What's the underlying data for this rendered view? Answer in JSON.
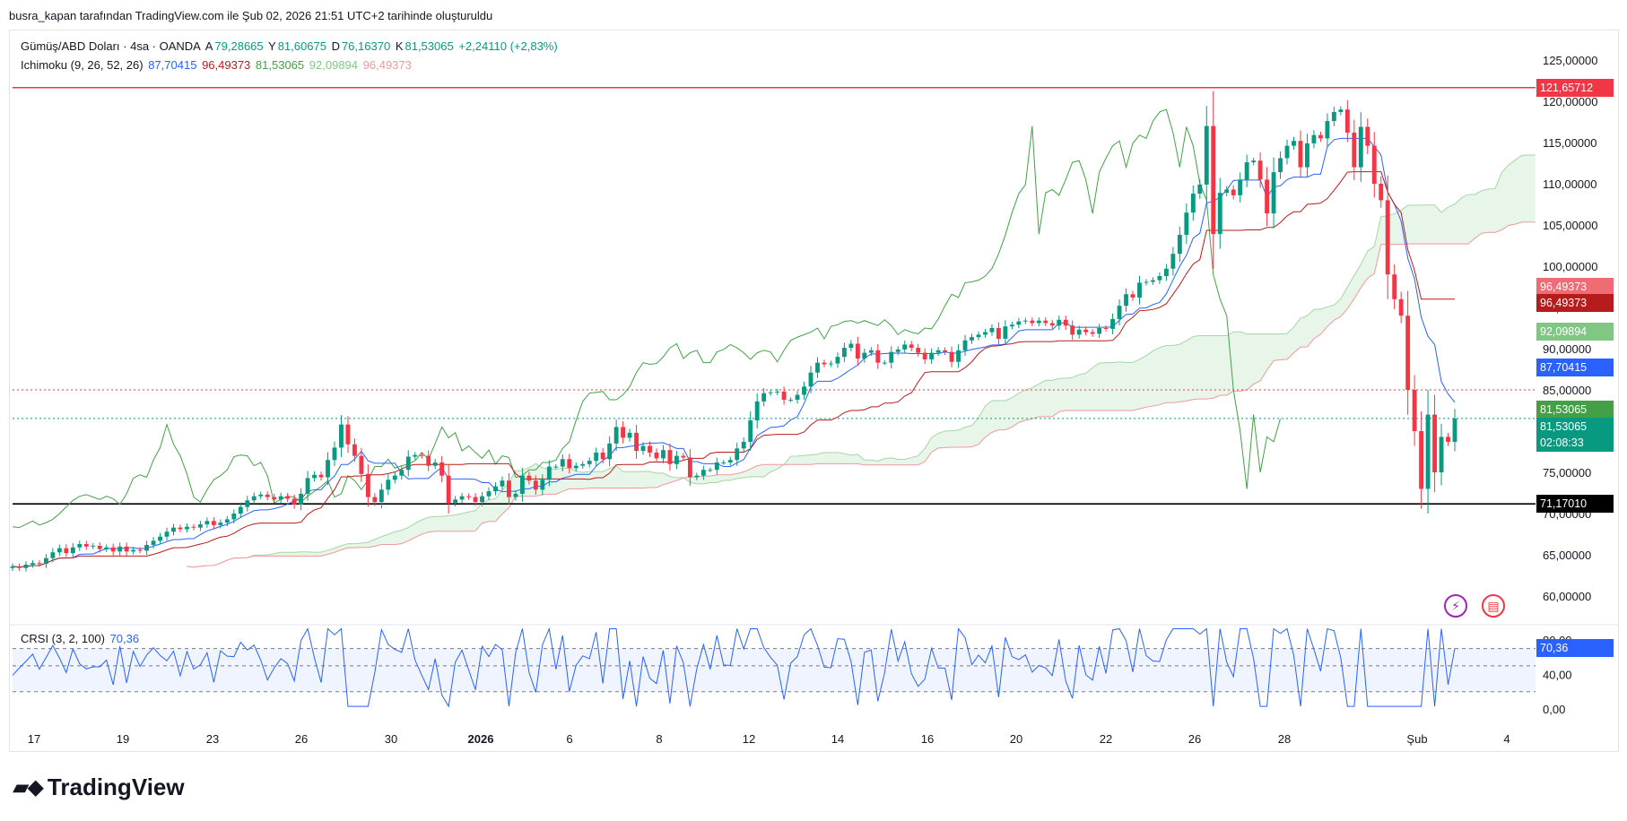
{
  "header_text": "busra_kapan tarafından TradingView.com ile Şub 02, 2026 21:51 UTC+2 tarihinde oluşturuldu",
  "brand": "TradingView",
  "legend": {
    "symbol": "Gümüş/ABD Doları · 4sa · OANDA",
    "o_label": "A",
    "o_val": "79,28665",
    "h_label": "Y",
    "h_val": "81,60675",
    "l_label": "D",
    "l_val": "76,16370",
    "c_label": "K",
    "c_val": "81,53065",
    "change": "+2,24110 (+2,83%)",
    "ichimoku_label": "Ichimoku (9, 26, 52, 26)",
    "ich_vals": [
      "87,70415",
      "96,49373",
      "81,53065",
      "92,09894",
      "96,49373"
    ],
    "crsi_label": "CRSI (3, 2, 100)",
    "crsi_val": "70,36"
  },
  "colors": {
    "up": "#089981",
    "down": "#f23645",
    "tenkan": "#2962ff",
    "kijun": "#b71c1c",
    "chikou": "#43a047",
    "spanA": "#a5d6a7",
    "spanB": "#ef9a9a",
    "crsi": "#2962ff"
  },
  "price_labels": [
    {
      "text": "121,65712",
      "bg": "#f23645",
      "price": 121.65712
    },
    {
      "text": "96,49373",
      "bg": "#ef6c75",
      "price": 96.49373,
      "dy": -9
    },
    {
      "text": "96,49373",
      "bg": "#b71c1c",
      "price": 96.49373,
      "dy": 9
    },
    {
      "text": "92,09894",
      "bg": "#81c784",
      "price": 92.09894
    },
    {
      "text": "87,70415",
      "bg": "#2962ff",
      "price": 87.70415
    },
    {
      "text": "81,53065",
      "bg": "#43a047",
      "price": 81.53065,
      "dy": -10
    },
    {
      "text": "81,53065",
      "bg": "#089981",
      "price": 81.53065,
      "dy": 9
    },
    {
      "text": "02:08:33",
      "bg": "#089981",
      "price": 81.53065,
      "dy": 27
    },
    {
      "text": "71,17010",
      "bg": "#000000",
      "price": 71.1701
    },
    {
      "text": "70,36",
      "bg": "#2962ff",
      "crsi": 70.36
    }
  ],
  "chart_data": {
    "type": "candlestick",
    "price_axis": {
      "ticks": [
        60,
        65,
        70,
        75,
        80,
        85,
        90,
        95,
        100,
        105,
        110,
        115,
        120,
        125
      ],
      "tick_labels": [
        "60,00000",
        "65,00000",
        "70,00000",
        "75,00000",
        "80,00000",
        "85,00000",
        "90,00000",
        "95,00000",
        "100,00000",
        "105,00000",
        "110,00000",
        "115,00000",
        "120,00000",
        "125,00000"
      ]
    },
    "crsi_axis": {
      "ticks": [
        0,
        40,
        80
      ],
      "tick_labels": [
        "0,00",
        "40,00",
        "80,00"
      ],
      "bands": [
        20,
        50,
        70
      ]
    },
    "time_axis": [
      "17",
      "19",
      "23",
      "26",
      "30",
      "2026",
      "6",
      "8",
      "12",
      "14",
      "16",
      "20",
      "22",
      "26",
      "28",
      "Şub",
      "4"
    ],
    "horizontal_lines": [
      {
        "price": 121.65712,
        "color": "#f23645",
        "style": "solid"
      },
      {
        "price": 71.1701,
        "color": "#000000",
        "style": "solid"
      },
      {
        "price": 85.0,
        "color": "#f23645",
        "style": "dotted"
      },
      {
        "price": 81.53065,
        "color": "#089981",
        "style": "dotted"
      }
    ],
    "candles_close": [
      63.6,
      63.4,
      63.8,
      64.0,
      63.9,
      64.6,
      65.3,
      65.8,
      65.2,
      65.9,
      66.3,
      66.0,
      66.1,
      65.7,
      65.9,
      65.4,
      66.0,
      65.4,
      65.6,
      65.5,
      66.2,
      66.7,
      67.2,
      67.8,
      68.3,
      68.1,
      68.4,
      68.3,
      68.7,
      69.1,
      68.6,
      68.9,
      69.3,
      70.0,
      70.8,
      71.6,
      72.1,
      72.3,
      72.0,
      71.7,
      72.1,
      71.8,
      71.1,
      72.4,
      74.3,
      74.7,
      74.4,
      76.5,
      78.0,
      80.8,
      78.4,
      77.0,
      74.8,
      72.0,
      71.4,
      72.9,
      74.1,
      74.6,
      75.3,
      76.9,
      77.1,
      77.0,
      75.8,
      76.2,
      74.6,
      71.3,
      71.7,
      72.1,
      72.0,
      71.4,
      72.1,
      72.7,
      73.3,
      74.0,
      72.0,
      72.4,
      74.6,
      74.0,
      72.9,
      74.1,
      75.7,
      75.7,
      76.6,
      75.5,
      75.8,
      76.0,
      76.4,
      77.4,
      76.6,
      78.5,
      80.5,
      79.2,
      79.8,
      77.6,
      78.2,
      77.4,
      76.7,
      77.7,
      76.0,
      77.0,
      76.8,
      74.4,
      74.6,
      75.3,
      75.3,
      76.2,
      76.2,
      76.5,
      77.9,
      78.7,
      81.3,
      83.6,
      84.6,
      84.7,
      84.8,
      83.8,
      83.8,
      84.4,
      85.4,
      87.1,
      88.3,
      88.1,
      88.2,
      89.0,
      90.1,
      90.6,
      88.8,
      89.5,
      89.8,
      88.3,
      88.3,
      89.6,
      89.9,
      90.5,
      90.1,
      89.5,
      88.7,
      89.5,
      89.8,
      89.6,
      88.4,
      89.8,
      91.0,
      91.4,
      91.7,
      92.0,
      92.5,
      91.2,
      92.7,
      92.9,
      93.3,
      93.4,
      93.1,
      93.4,
      93.1,
      92.8,
      93.5,
      92.8,
      91.7,
      92.3,
      92.0,
      91.8,
      92.5,
      92.4,
      93.6,
      95.2,
      96.6,
      96.2,
      98.0,
      98.1,
      98.3,
      98.8,
      99.7,
      101.5,
      103.8,
      106.5,
      108.8,
      109.9,
      117.0,
      103.9,
      108.9,
      109.3,
      108.6,
      110.5,
      112.6,
      112.8,
      110.5,
      106.4,
      111.4,
      113.1,
      114.6,
      115.2,
      112.0,
      114.9,
      115.9,
      115.5,
      117.6,
      118.7,
      119.0,
      116.2,
      112.0,
      116.9,
      114.6,
      110.0,
      108.0,
      99.0,
      96.0,
      94.0,
      85.0,
      80.0,
      73.0,
      82.0,
      75.0,
      79.3,
      78.7,
      81.53
    ]
  }
}
